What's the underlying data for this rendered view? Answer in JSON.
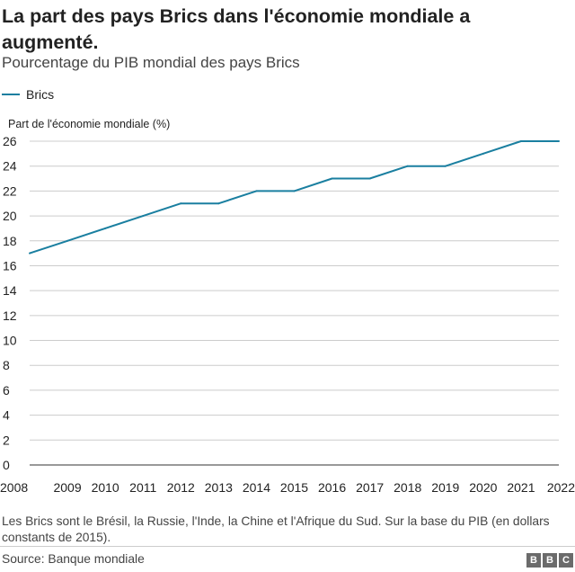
{
  "header": {
    "title": "La part des pays Brics dans l'économie mondiale a augmenté.",
    "subtitle": "Pourcentage du PIB mondial des pays Brics"
  },
  "legend": {
    "label": "Brics",
    "color": "#1a7fa0"
  },
  "footer": {
    "note": "Les Brics sont le Brésil, la Russie, l'Inde, la Chine et l'Afrique du Sud. Sur la base du PIB (en dollars constants de 2015).",
    "source": "Source: Banque mondiale",
    "logo_letters": [
      "B",
      "B",
      "C"
    ]
  },
  "colors": {
    "line": "#1a7fa0",
    "grid": "#cccccc",
    "axis": "#333333"
  },
  "chart_data": {
    "type": "line",
    "ylabel": "Part de l'économie mondiale (%)",
    "xlabel": "",
    "ylim": [
      0,
      26
    ],
    "yticks": [
      0,
      2,
      4,
      6,
      8,
      10,
      12,
      14,
      16,
      18,
      20,
      22,
      24,
      26
    ],
    "x": [
      2008,
      2009,
      2010,
      2011,
      2012,
      2013,
      2014,
      2015,
      2016,
      2017,
      2018,
      2019,
      2020,
      2021,
      2022
    ],
    "series": [
      {
        "name": "Brics",
        "values": [
          17,
          18,
          19,
          20,
          21,
          21,
          22,
          22,
          23,
          23,
          24,
          24,
          25,
          26,
          26
        ]
      }
    ],
    "grid": true,
    "legend_position": "top-left"
  }
}
